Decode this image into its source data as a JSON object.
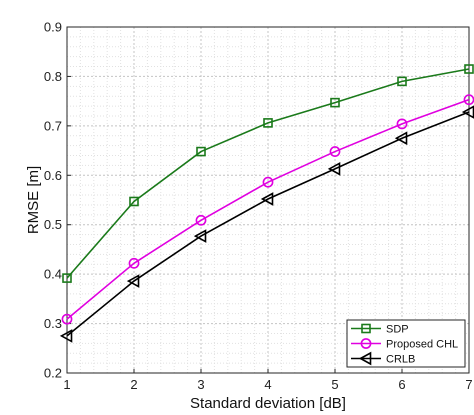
{
  "chart_data": {
    "type": "line",
    "title": "",
    "xlabel": "Standard deviation [dB]",
    "ylabel": "RMSE [m]",
    "xlim": [
      1,
      7
    ],
    "ylim": [
      0.2,
      0.9
    ],
    "xticks": [
      1,
      2,
      3,
      4,
      5,
      6,
      7
    ],
    "xtick_labels": [
      "1",
      "2",
      "3",
      "4",
      "5",
      "6",
      "7"
    ],
    "yticks": [
      0.2,
      0.3,
      0.4,
      0.5,
      0.6,
      0.7,
      0.8,
      0.9
    ],
    "ytick_labels": [
      "0.2",
      "0.3",
      "0.4",
      "0.5",
      "0.6",
      "0.7",
      "0.8",
      "0.9"
    ],
    "grid": "major and minor, dotted",
    "legend_position": "bottom-right",
    "x": [
      1,
      2,
      3,
      4,
      5,
      6,
      7
    ],
    "series": [
      {
        "name": "SDP",
        "color": "#1a7a1a",
        "marker": "square",
        "values": [
          0.392,
          0.547,
          0.648,
          0.706,
          0.747,
          0.79,
          0.815
        ]
      },
      {
        "name": "Proposed CHL",
        "color": "#e000e0",
        "marker": "circle",
        "values": [
          0.309,
          0.422,
          0.509,
          0.586,
          0.648,
          0.704,
          0.753
        ]
      },
      {
        "name": "CRLB",
        "color": "#000000",
        "marker": "triangle-left",
        "values": [
          0.275,
          0.386,
          0.477,
          0.552,
          0.613,
          0.675,
          0.728
        ]
      }
    ]
  }
}
